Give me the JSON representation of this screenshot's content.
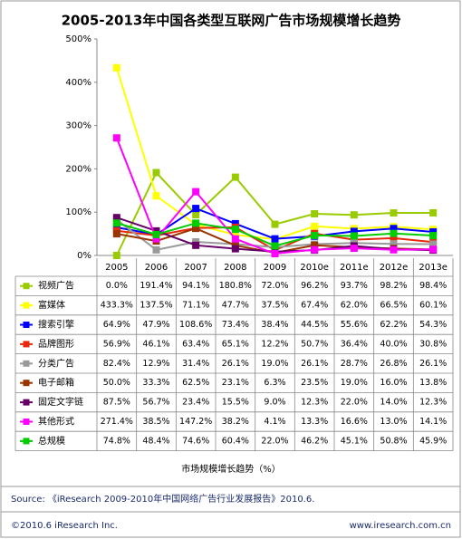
{
  "chart_data": {
    "type": "line",
    "title": "2005-2013年中国各类型互联网广告市场规模增长趋势",
    "x_label": "市场规模增长趋势（%）",
    "source": "Source: 《iResearch 2009-2010年中国网络广告行业发展报告》2010.6.",
    "footer_left": "©2010.6 iResearch Inc.",
    "footer_right": "www.iresearch.com.cn",
    "categories": [
      "2005",
      "2006",
      "2007",
      "2008",
      "2009",
      "2010e",
      "2011e",
      "2012e",
      "2013e"
    ],
    "ylim": [
      0,
      500
    ],
    "yticks": [
      {
        "value": 0,
        "label": "0%"
      },
      {
        "value": 100,
        "label": "100%"
      },
      {
        "value": 200,
        "label": "200%"
      },
      {
        "value": 300,
        "label": "300%"
      },
      {
        "value": 400,
        "label": "400%"
      },
      {
        "value": 500,
        "label": "500%"
      }
    ],
    "grid": false,
    "series": [
      {
        "name": "视频广告",
        "color": "#99cc00",
        "values": [
          0.0,
          191.4,
          94.1,
          180.8,
          72.0,
          96.2,
          93.7,
          98.2,
          98.4
        ],
        "value_labels": [
          "0.0%",
          "191.4%",
          "94.1%",
          "180.8%",
          "72.0%",
          "96.2%",
          "93.7%",
          "98.2%",
          "98.4%"
        ]
      },
      {
        "name": "富媒体",
        "color": "#ffff00",
        "values": [
          433.3,
          137.5,
          71.1,
          47.7,
          37.5,
          67.4,
          62.0,
          66.5,
          60.1
        ],
        "value_labels": [
          "433.3%",
          "137.5%",
          "71.1%",
          "47.7%",
          "37.5%",
          "67.4%",
          "62.0%",
          "66.5%",
          "60.1%"
        ]
      },
      {
        "name": "搜索引擎",
        "color": "#0000ff",
        "values": [
          64.9,
          47.9,
          108.6,
          73.4,
          38.4,
          44.5,
          55.6,
          62.2,
          54.3
        ],
        "value_labels": [
          "64.9%",
          "47.9%",
          "108.6%",
          "73.4%",
          "38.4%",
          "44.5%",
          "55.6%",
          "62.2%",
          "54.3%"
        ]
      },
      {
        "name": "品牌图形",
        "color": "#e8280c",
        "values": [
          56.9,
          46.1,
          63.4,
          65.1,
          12.2,
          50.7,
          36.4,
          40.0,
          30.8
        ],
        "value_labels": [
          "56.9%",
          "46.1%",
          "63.4%",
          "65.1%",
          "12.2%",
          "50.7%",
          "36.4%",
          "40.0%",
          "30.8%"
        ]
      },
      {
        "name": "分类广告",
        "color": "#999999",
        "values": [
          82.4,
          12.9,
          31.4,
          26.1,
          19.0,
          26.1,
          28.7,
          26.8,
          26.1
        ],
        "value_labels": [
          "82.4%",
          "12.9%",
          "31.4%",
          "26.1%",
          "19.0%",
          "26.1%",
          "28.7%",
          "26.8%",
          "26.1%"
        ]
      },
      {
        "name": "电子邮箱",
        "color": "#993300",
        "values": [
          50.0,
          33.3,
          62.5,
          23.1,
          6.3,
          23.5,
          19.0,
          16.0,
          13.8
        ],
        "value_labels": [
          "50.0%",
          "33.3%",
          "62.5%",
          "23.1%",
          "6.3%",
          "23.5%",
          "19.0%",
          "16.0%",
          "13.8%"
        ]
      },
      {
        "name": "固定文字链",
        "color": "#660066",
        "values": [
          87.5,
          56.7,
          23.4,
          15.5,
          9.0,
          12.3,
          22.0,
          14.0,
          12.3
        ],
        "value_labels": [
          "87.5%",
          "56.7%",
          "23.4%",
          "15.5%",
          "9.0%",
          "12.3%",
          "22.0%",
          "14.0%",
          "12.3%"
        ]
      },
      {
        "name": "其他形式",
        "color": "#ff00ff",
        "values": [
          271.4,
          38.5,
          147.2,
          38.2,
          4.1,
          13.3,
          16.6,
          13.0,
          14.1
        ],
        "value_labels": [
          "271.4%",
          "38.5%",
          "147.2%",
          "38.2%",
          "4.1%",
          "13.3%",
          "16.6%",
          "13.0%",
          "14.1%"
        ]
      },
      {
        "name": "总规模",
        "color": "#00cc00",
        "values": [
          74.8,
          48.4,
          74.6,
          60.4,
          22.0,
          46.2,
          45.1,
          50.8,
          45.9
        ],
        "value_labels": [
          "74.8%",
          "48.4%",
          "74.6%",
          "60.4%",
          "22.0%",
          "46.2%",
          "45.1%",
          "50.8%",
          "45.9%"
        ]
      }
    ]
  }
}
